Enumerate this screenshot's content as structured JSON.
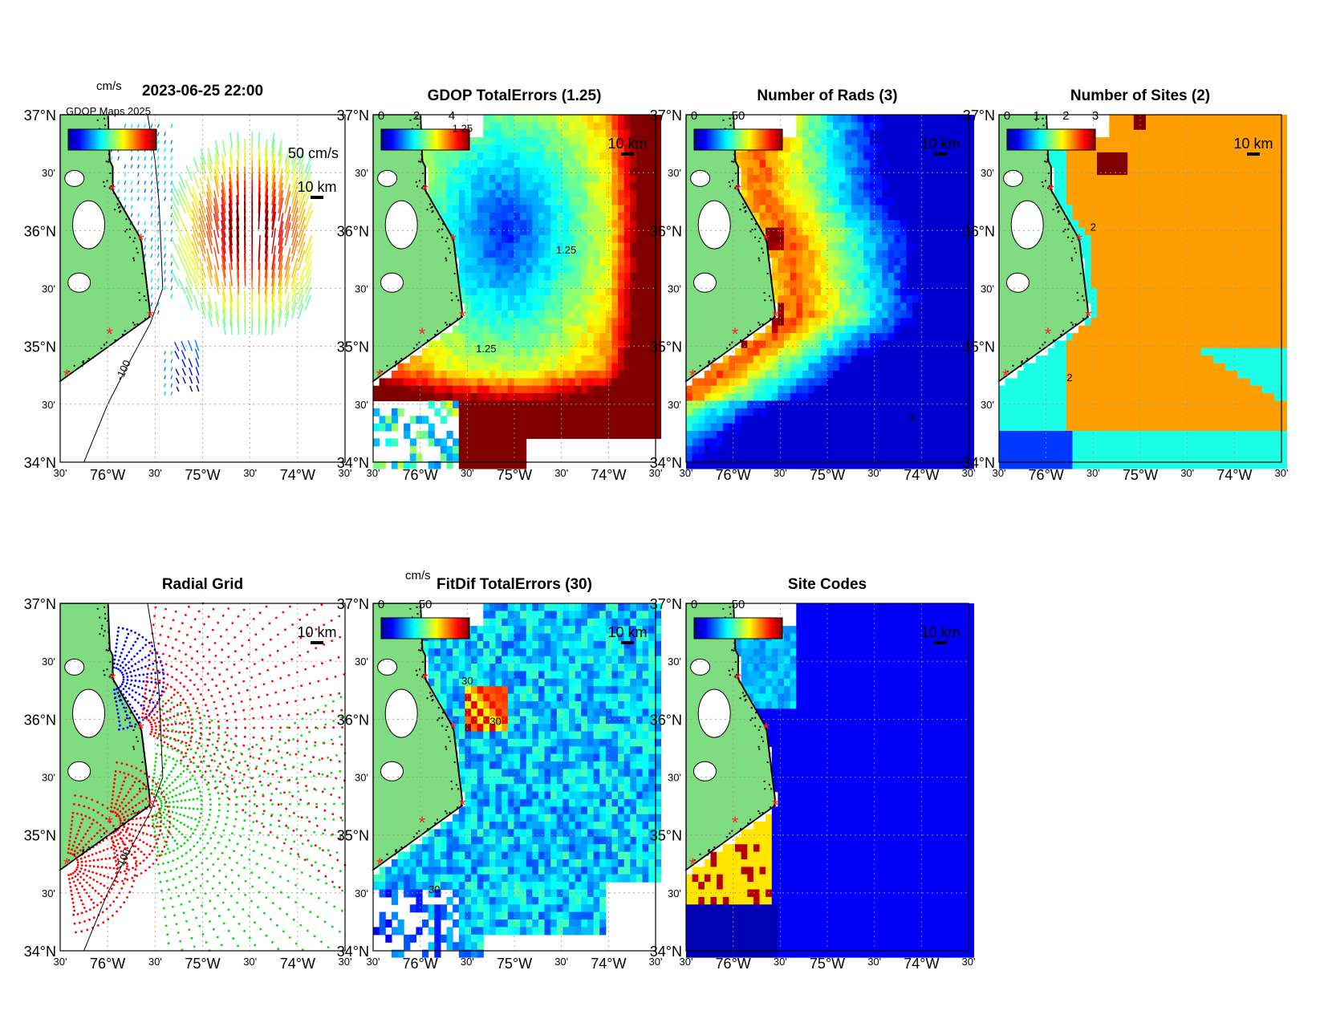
{
  "figure": {
    "timestamp": "2023-06-25 22:00",
    "vector_scale_label": "50 cm/s",
    "vector_units": "cm/s",
    "clipped_header_text": "GDOP Maps 2025",
    "site_marker_symbol": "*",
    "colors": {
      "land": "#80DC80",
      "site_marker": "#FF2020",
      "frame": "#000000"
    }
  },
  "map": {
    "lat_range": [
      34,
      37
    ],
    "lon_range": [
      -76.5,
      -73.5
    ],
    "lat_major_labels": [
      "37°N",
      "36°N",
      "35°N",
      "34°N"
    ],
    "lat_minor_label": "30'",
    "lon_major_labels": [
      "76°W",
      "75°W",
      "74°W"
    ],
    "lon_minor_label": "30'",
    "scale_bar_label": "10 km",
    "isobath_label": "-100",
    "sites": [
      {
        "lon": -75.95,
        "lat": 36.35
      },
      {
        "lon": -75.65,
        "lat": 35.92
      },
      {
        "lon": -75.55,
        "lat": 35.26
      },
      {
        "lon": -75.98,
        "lat": 35.11
      },
      {
        "lon": -76.43,
        "lat": 34.75
      }
    ]
  },
  "panels": [
    {
      "id": "current-vectors",
      "title": "2023-06-25 22:00",
      "colorbar_units": "cm/s",
      "colorbar_ticks": []
    },
    {
      "id": "gdop",
      "title": "GDOP TotalErrors (1.25)",
      "colorbar_ticks": [
        "0",
        "2",
        "4"
      ],
      "contour_label": "1.25"
    },
    {
      "id": "num-rads",
      "title": "Number of Rads (3)",
      "colorbar_ticks": [
        "0",
        "50"
      ],
      "contour_label": "3"
    },
    {
      "id": "num-sites",
      "title": "Number of Sites (2)",
      "colorbar_ticks": [
        "0",
        "1",
        "2",
        "3"
      ],
      "contour_label": "2"
    },
    {
      "id": "radial-grid",
      "title": "Radial Grid",
      "colorbar_ticks": []
    },
    {
      "id": "fitdif",
      "title": "FitDif TotalErrors (30)",
      "colorbar_units": "cm/s",
      "colorbar_ticks": [
        "0",
        "50"
      ],
      "contour_label": "30"
    },
    {
      "id": "site-codes",
      "title": "Site Codes",
      "colorbar_ticks": [
        "0",
        "50"
      ]
    }
  ]
}
